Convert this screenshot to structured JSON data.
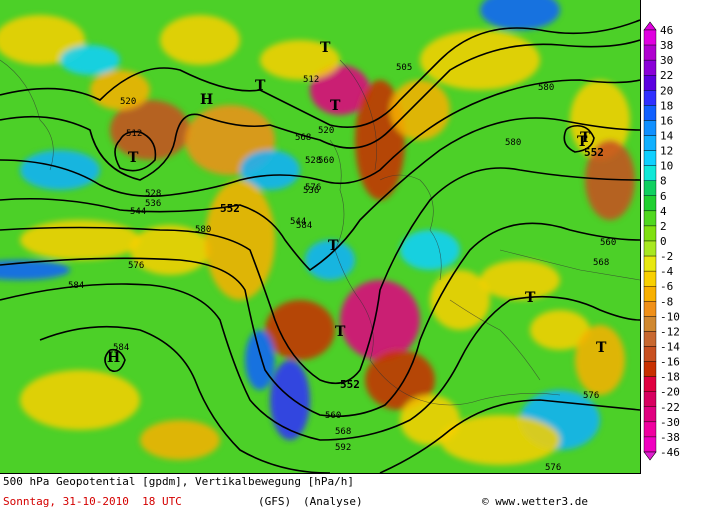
{
  "legend": {
    "values": [
      "46",
      "38",
      "30",
      "22",
      "20",
      "18",
      "16",
      "14",
      "12",
      "10",
      "8",
      "6",
      "4",
      "2",
      "0",
      "-2",
      "-4",
      "-6",
      "-8",
      "-10",
      "-12",
      "-14",
      "-16",
      "-18",
      "-20",
      "-22",
      "-30",
      "-38",
      "-46"
    ],
    "colors": [
      "#e000e0",
      "#b000d0",
      "#8a00d8",
      "#5a00e0",
      "#3030ff",
      "#1060ff",
      "#1090ff",
      "#10b0ff",
      "#10d0ff",
      "#10e8d8",
      "#10d060",
      "#20d030",
      "#50d820",
      "#80e010",
      "#a8e820",
      "#e8e810",
      "#f8d000",
      "#f8b000",
      "#f09018",
      "#d08830",
      "#c86830",
      "#c85020",
      "#c83000",
      "#e00040",
      "#d80060",
      "#e00080",
      "#f000a0",
      "#f000c0",
      "#e020d0"
    ]
  },
  "isolines": [
    "512",
    "520",
    "528",
    "536",
    "544",
    "552",
    "560",
    "568",
    "576",
    "584",
    "592",
    "505",
    "512",
    "520",
    "528",
    "536",
    "544",
    "552",
    "560",
    "568",
    "576",
    "584",
    "552",
    "560",
    "568",
    "576",
    "580",
    "580",
    "580",
    "576",
    "584"
  ],
  "pressure_centers": [
    "T",
    "T",
    "T",
    "T",
    "T",
    "T",
    "T",
    "T",
    "T",
    "H",
    "H",
    "T"
  ],
  "footer": {
    "line1": "500 hPa Geopotential [gpdm], Vertikalbewegung [hPa/h]",
    "date": "Sonntag, 31-10-2010  18 UTC",
    "model": "(GFS)",
    "analysis": "(Analyse)",
    "credit": "© www.wetter3.de"
  },
  "colors": {
    "background_field": "#4cd028",
    "contour": "#000000",
    "footer_date": "#d40000"
  }
}
